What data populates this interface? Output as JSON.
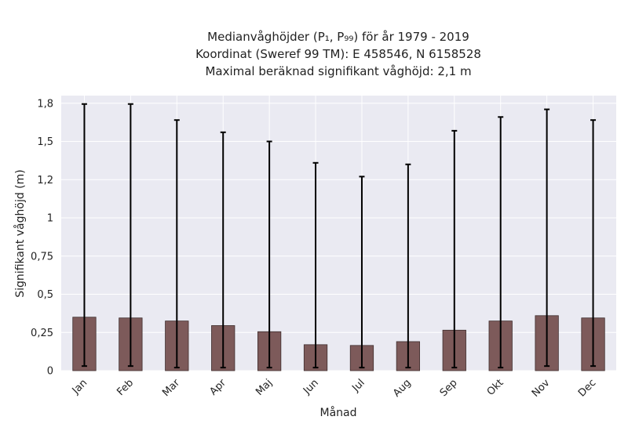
{
  "chart_data": {
    "type": "bar",
    "title_lines": [
      "Medianvåghöjder (P₁, P₉₉) för år 1979 - 2019",
      "Koordinat (Sweref 99 TM): E 458546, N 6158528",
      "Maximal beräknad signifikant våghöjd: 2,1 m"
    ],
    "xlabel": "Månad",
    "ylabel": "Signifikant våghöjd (m)",
    "categories": [
      "Jan",
      "Feb",
      "Mar",
      "Apr",
      "Maj",
      "Jun",
      "Jul",
      "Aug",
      "Sep",
      "Okt",
      "Nov",
      "Dec"
    ],
    "series": [
      {
        "values": [
          0.35,
          0.345,
          0.325,
          0.295,
          0.255,
          0.17,
          0.165,
          0.19,
          0.265,
          0.325,
          0.36,
          0.345
        ],
        "error_low": [
          0.03,
          0.03,
          0.02,
          0.02,
          0.02,
          0.02,
          0.02,
          0.02,
          0.02,
          0.02,
          0.03,
          0.03
        ],
        "error_high": [
          1.745,
          1.745,
          1.64,
          1.56,
          1.5,
          1.36,
          1.27,
          1.35,
          1.57,
          1.66,
          1.71,
          1.64
        ]
      }
    ],
    "yticks": [
      0,
      0.25,
      0.5,
      0.75,
      1,
      1.25,
      1.5,
      1.75
    ],
    "ytick_labels": [
      "0",
      "0,25",
      "0,5",
      "0,75",
      "1",
      "1,2",
      "1,5",
      "1,8"
    ],
    "ylim": [
      0,
      1.8
    ],
    "grid": true,
    "colors": {
      "plot_background": "#eaeaf2",
      "grid": "#ffffff",
      "bar_fill": "#7d5a5a",
      "bar_edge": "#3f2e2e",
      "error_bar": "#000000"
    }
  }
}
